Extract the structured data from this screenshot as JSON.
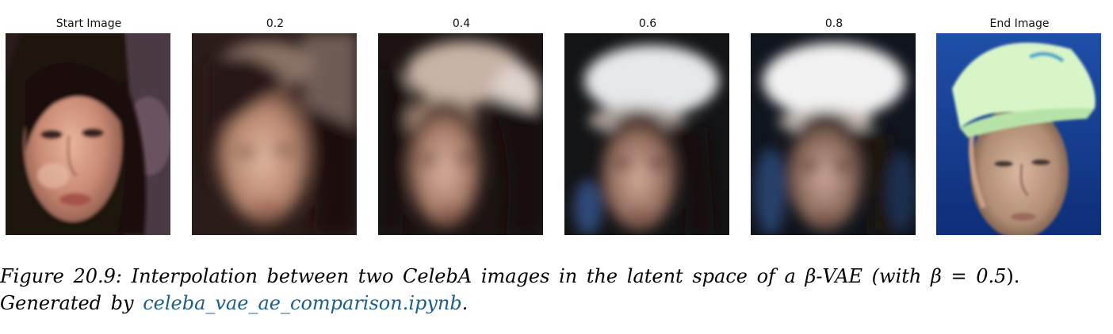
{
  "figure": {
    "panels": [
      {
        "title": "Start Image",
        "icon": "start-face-photo"
      },
      {
        "title": "0.2",
        "icon": "interpolated-face-image"
      },
      {
        "title": "0.4",
        "icon": "interpolated-face-image"
      },
      {
        "title": "0.6",
        "icon": "interpolated-face-image"
      },
      {
        "title": "0.8",
        "icon": "interpolated-face-image"
      },
      {
        "title": "End Image",
        "icon": "end-face-photo"
      }
    ]
  },
  "caption": {
    "label": "Figure 20.9:",
    "text_before": "Interpolation between two CelebA images in the latent space of a ",
    "beta_symbol": "β",
    "text_vae": "-VAE (with ",
    "equation": "β = 0.5",
    "text_after": ").",
    "generated_prefix": "Generated by ",
    "link_text": "celeba_vae_ae_comparison.ipynb",
    "generated_suffix": ".",
    "link_color": "#1b5e8a"
  }
}
